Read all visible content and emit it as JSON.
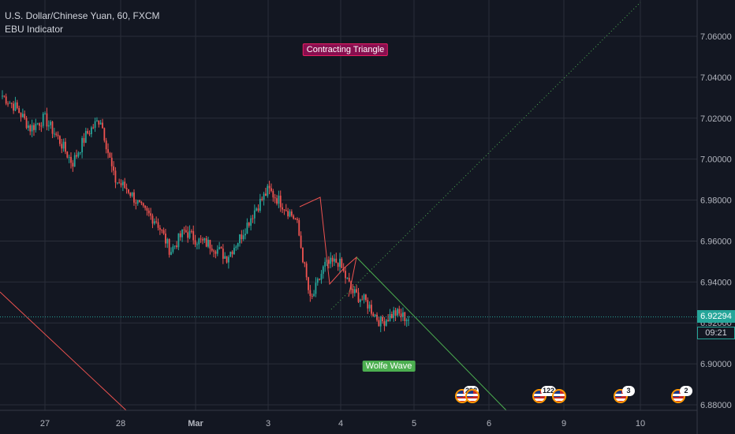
{
  "header": {
    "symbol_line": "U.S. Dollar/Chinese Yuan, 60, FXCM",
    "indicator_line": "EBU Indicator"
  },
  "price_axis": {
    "ticks": [
      "7.06000",
      "7.04000",
      "7.02000",
      "7.00000",
      "6.98000",
      "6.96000",
      "6.94000",
      "6.92000",
      "6.90000",
      "6.88000"
    ],
    "current_price": "6.92294",
    "countdown": "09:21"
  },
  "time_axis": {
    "ticks": [
      "27",
      "28",
      "Mar",
      "3",
      "4",
      "5",
      "6",
      "9",
      "10"
    ]
  },
  "labels": {
    "contracting_triangle": "Contracting Triangle",
    "wolfe_wave": "Wolfe Wave"
  },
  "events": [
    {
      "count": "298"
    },
    {
      "count": "122"
    },
    {
      "count": "3"
    },
    {
      "count": "2"
    }
  ],
  "colors": {
    "background": "#131722",
    "up": "#26a69a",
    "down": "#ef5350",
    "triangle_line": "#ef5350",
    "wolfe_line": "#4caf50",
    "projection_dots": "#4caf50",
    "label_triangle": "#880e4f",
    "label_wolfe": "#4caf50"
  },
  "chart_data": {
    "type": "candlestick",
    "title": "U.S. Dollar/Chinese Yuan, 60, FXCM",
    "indicator": "EBU Indicator",
    "ylim": [
      6.878,
      7.078
    ],
    "yticks": [
      7.06,
      7.04,
      7.02,
      7.0,
      6.98,
      6.96,
      6.94,
      6.92,
      6.9,
      6.88
    ],
    "last_price": 6.92294,
    "anchor_closes": [
      7.031,
      7.025,
      7.015,
      7.02,
      7.01,
      6.998,
      7.012,
      7.02,
      6.99,
      6.985,
      6.975,
      6.97,
      6.955,
      6.965,
      6.96,
      6.958,
      6.952,
      6.962,
      6.975,
      6.985,
      6.978,
      6.97,
      6.93,
      6.948,
      6.95,
      6.935,
      6.93,
      6.92,
      6.925,
      6.922
    ],
    "grid": true
  }
}
